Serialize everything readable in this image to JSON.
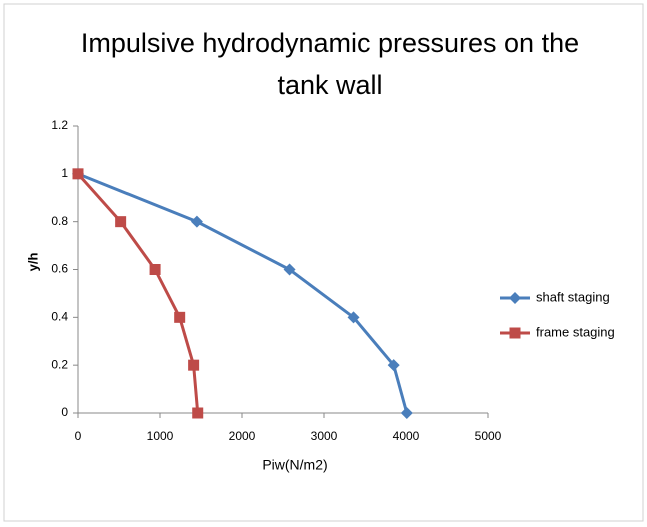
{
  "chart_data": {
    "type": "line",
    "title": "Impulsive hydrodynamic pressures on the tank wall",
    "x_label": "Piw(N/m2)",
    "y_label": "y/h",
    "series": [
      {
        "name": "shaft staging",
        "color": "#4a7ebb",
        "marker": "diamond",
        "x": [
          0,
          1450,
          2580,
          3360,
          3850,
          4010
        ],
        "values": [
          1,
          0.8,
          0.6,
          0.4,
          0.2,
          0
        ]
      },
      {
        "name": "frame staging",
        "color": "#be4b48",
        "marker": "square",
        "x": [
          0,
          520,
          940,
          1240,
          1410,
          1460
        ],
        "values": [
          1,
          0.8,
          0.6,
          0.4,
          0.2,
          0
        ]
      }
    ],
    "xlim": [
      0,
      5000
    ],
    "xticks": [
      0,
      1000,
      2000,
      3000,
      4000,
      5000
    ],
    "ylim": [
      0,
      1.2
    ],
    "yticks": [
      0,
      0.2,
      0.4,
      0.6,
      0.8,
      1,
      1.2
    ],
    "grid": false,
    "legend": "right"
  }
}
